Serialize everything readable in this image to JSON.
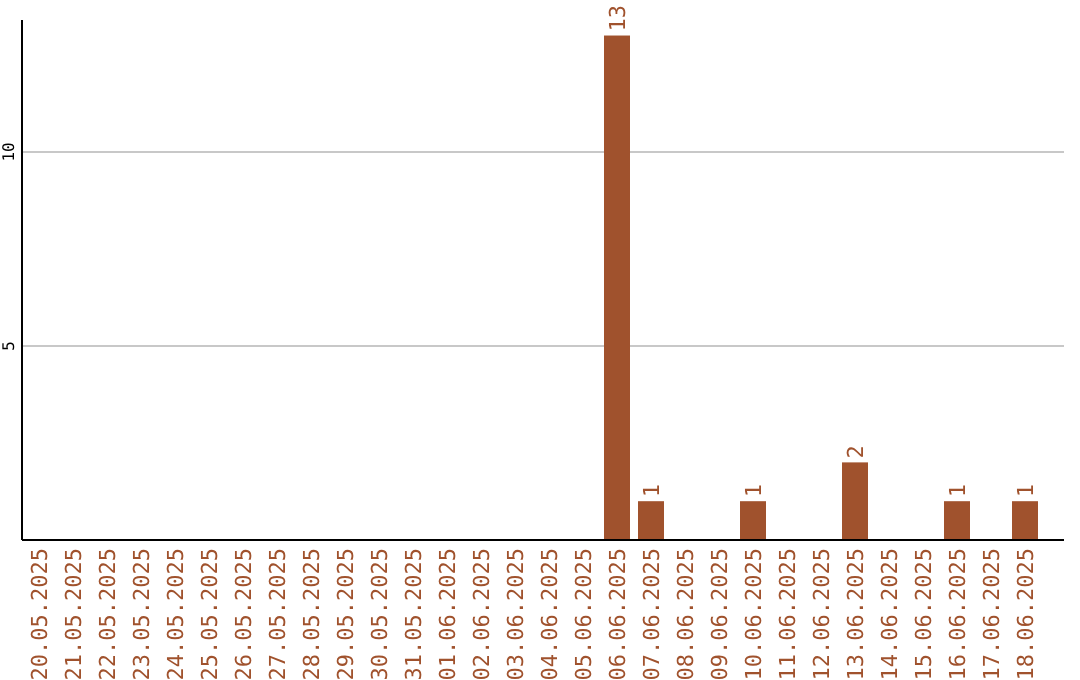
{
  "chart_data": {
    "type": "bar",
    "categories": [
      "20.05.2025",
      "21.05.2025",
      "22.05.2025",
      "23.05.2025",
      "24.05.2025",
      "25.05.2025",
      "26.05.2025",
      "27.05.2025",
      "28.05.2025",
      "29.05.2025",
      "30.05.2025",
      "31.05.2025",
      "01.06.2025",
      "02.06.2025",
      "03.06.2025",
      "04.06.2025",
      "05.06.2025",
      "06.06.2025",
      "07.06.2025",
      "08.06.2025",
      "09.06.2025",
      "10.06.2025",
      "11.06.2025",
      "12.06.2025",
      "13.06.2025",
      "14.06.2025",
      "15.06.2025",
      "16.06.2025",
      "17.06.2025",
      "18.06.2025"
    ],
    "values": [
      0,
      0,
      0,
      0,
      0,
      0,
      0,
      0,
      0,
      0,
      0,
      0,
      0,
      0,
      0,
      0,
      0,
      13,
      1,
      0,
      0,
      1,
      0,
      0,
      2,
      0,
      0,
      1,
      0,
      1
    ],
    "value_labels": [
      null,
      null,
      null,
      null,
      null,
      null,
      null,
      null,
      null,
      null,
      null,
      null,
      null,
      null,
      null,
      null,
      null,
      "13",
      "1",
      null,
      null,
      "1",
      null,
      null,
      "2",
      null,
      null,
      "1",
      null,
      "1"
    ],
    "color": "#a0522d",
    "ylim": [
      0,
      13.4
    ],
    "yticks": [
      5,
      10
    ],
    "grid": "y"
  }
}
